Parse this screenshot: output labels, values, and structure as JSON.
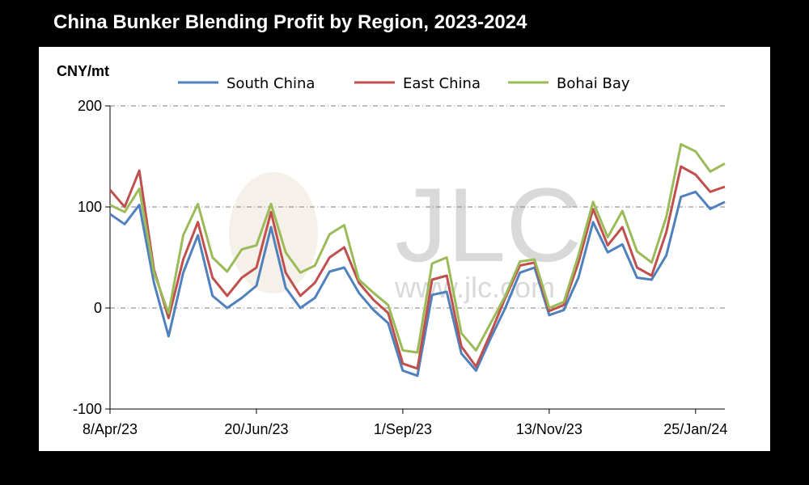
{
  "header": {
    "title": "China Bunker Blending Profit by Region, 2023-2024"
  },
  "watermark": {
    "logo": "JLC",
    "url": "www.jlc.com"
  },
  "chart_data": {
    "type": "line",
    "title": "China Bunker Blending Profit by Region, 2023-2024",
    "ylabel": "CNY/mt",
    "xlabel": "",
    "ylim": [
      -100,
      200
    ],
    "yticks": [
      -100,
      0,
      100,
      200
    ],
    "xtick_labels": [
      "8/Apr/23",
      "20/Jun/23",
      "1/Sep/23",
      "13/Nov/23",
      "25/Jan/24"
    ],
    "xtick_index": [
      0,
      10,
      20,
      30,
      40
    ],
    "grid": "horizontal dashed",
    "legend_position": "top",
    "series": [
      {
        "name": "South China",
        "color": "#4f81bd",
        "values": [
          93,
          83,
          102,
          25,
          -28,
          35,
          72,
          12,
          0,
          10,
          22,
          80,
          20,
          0,
          10,
          36,
          40,
          15,
          -2,
          -15,
          -62,
          -67,
          13,
          16,
          -45,
          -62,
          -30,
          0,
          35,
          40,
          -7,
          -2,
          30,
          85,
          55,
          63,
          30,
          28,
          52,
          110,
          115,
          98,
          105
        ]
      },
      {
        "name": "East China",
        "color": "#c0504d",
        "values": [
          117,
          100,
          136,
          38,
          -10,
          48,
          85,
          30,
          12,
          30,
          40,
          95,
          35,
          12,
          25,
          50,
          60,
          25,
          8,
          -5,
          -55,
          -60,
          28,
          32,
          -38,
          -58,
          -25,
          10,
          42,
          45,
          -3,
          3,
          45,
          98,
          62,
          80,
          40,
          32,
          75,
          140,
          132,
          115,
          120
        ]
      },
      {
        "name": "Bohai Bay",
        "color": "#9bbb59",
        "values": [
          102,
          95,
          118,
          35,
          -5,
          72,
          103,
          50,
          36,
          58,
          62,
          103,
          55,
          35,
          42,
          73,
          82,
          28,
          15,
          3,
          -42,
          -44,
          44,
          50,
          -25,
          -42,
          -15,
          12,
          46,
          48,
          0,
          6,
          52,
          105,
          70,
          96,
          56,
          45,
          90,
          162,
          155,
          135,
          143
        ]
      }
    ]
  }
}
